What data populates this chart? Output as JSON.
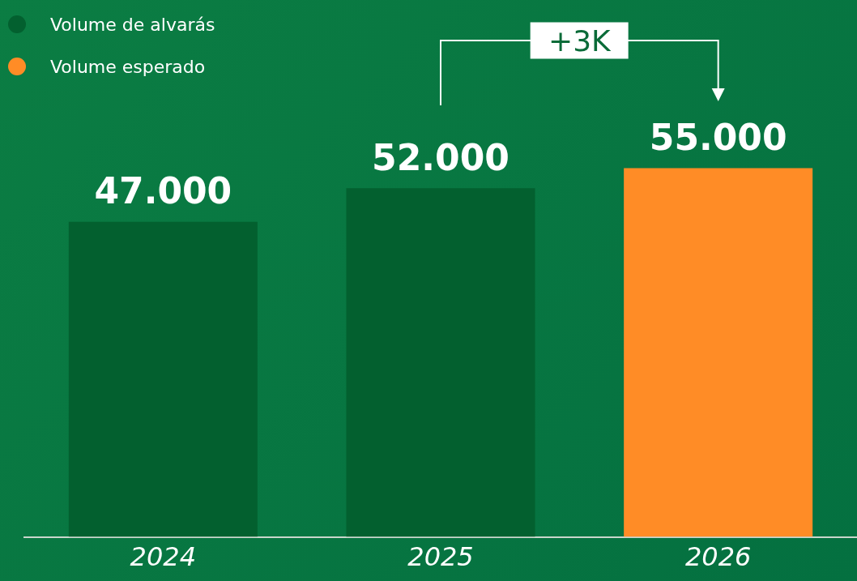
{
  "chart_data": {
    "type": "bar",
    "categories": [
      "2024",
      "2025",
      "2026"
    ],
    "series": [
      {
        "name": "Volume de alvarás",
        "color": "#03602f",
        "values": [
          47000,
          52000,
          null
        ],
        "value_labels": [
          "47.000",
          "52.000",
          null
        ]
      },
      {
        "name": "Volume esperado",
        "color": "#ff8c26",
        "values": [
          null,
          null,
          55000
        ],
        "value_labels": [
          null,
          null,
          "55.000"
        ]
      }
    ],
    "annotations": [
      "+3K"
    ],
    "legend": "top left",
    "grid": false,
    "tick_labels": "x"
  }
}
